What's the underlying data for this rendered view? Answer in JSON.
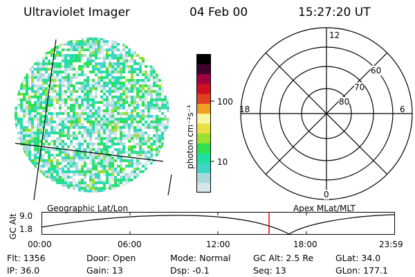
{
  "header": {
    "instrument": "Ultraviolet Imager",
    "date": "04 Feb 00",
    "time": "15:27:20 UT"
  },
  "colorbar": {
    "unit_label": "photon cm⁻²s⁻¹",
    "scale": "log",
    "tick_labels": [
      "100",
      "10"
    ],
    "colors": [
      "#d6e6ea",
      "#a8dadc",
      "#3fd6c8",
      "#20e0a0",
      "#30e050",
      "#9ae030",
      "#e8e040",
      "#f7f7a0",
      "#f0a020",
      "#e04020",
      "#d01020",
      "#a00040",
      "#400030",
      "#000000"
    ]
  },
  "polar_plot": {
    "mlt_labels": [
      "12",
      "18",
      "6",
      "0"
    ],
    "mlat_labels": [
      "60",
      "70",
      "80"
    ]
  },
  "timeline": {
    "left_label": "Geographic Lat/Lon",
    "right_label": "Apex  MLat/MLT",
    "y_axis_label": "GC Alt",
    "y_ticks": [
      "9.0",
      "1.8"
    ],
    "x_ticks": [
      "00:00",
      "06:00",
      "12:00",
      "18:00",
      "23:59"
    ],
    "current_time_color": "#e00000"
  },
  "info": {
    "flt": "Flt: 1356",
    "ip": "IP: 36.0",
    "door": "Door: Open",
    "gain": "Gain: 13",
    "mode": "Mode: Normal",
    "dsp": "Dsp:    -0.1",
    "gcalt": "GC Alt: 2.5 Re",
    "seq": "Seq: 13",
    "glat": "GLat:  34.0",
    "glon": "GLon: 177.1"
  }
}
